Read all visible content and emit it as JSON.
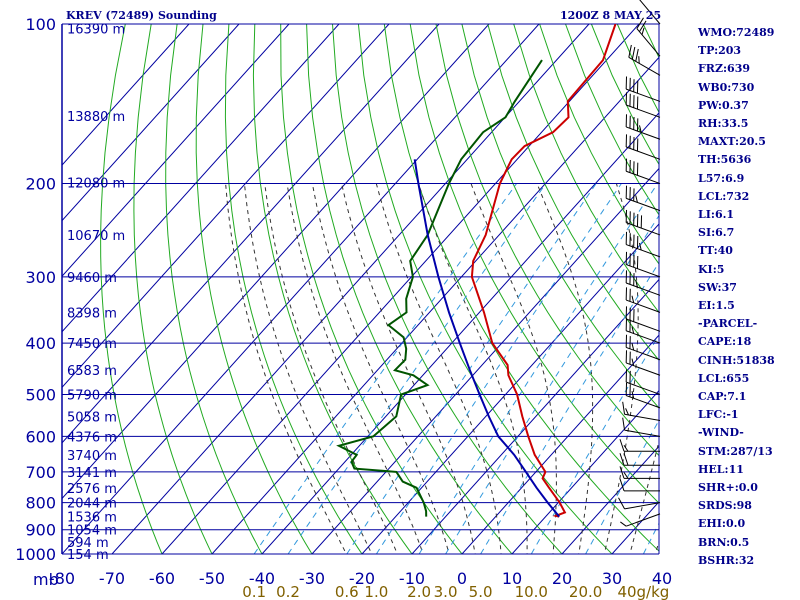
{
  "header": {
    "station": "KREV (72489) Sounding",
    "time": "1200Z  8 MAY 25"
  },
  "indices": [
    "WMO:72489",
    "TP:203",
    "FRZ:639",
    "WB0:730",
    "PW:0.37",
    "RH:33.5",
    "MAXT:20.5",
    "TH:5636",
    "L57:6.9",
    "LCL:732",
    "LI:6.1",
    "SI:6.7",
    "TT:40",
    "KI:5",
    "SW:37",
    "EI:1.5",
    "-PARCEL-",
    "CAPE:18",
    "CINH:51838",
    "LCL:655",
    "CAP:7.1",
    "LFC:-1",
    "-WIND-",
    "STM:287/13",
    "HEL:11",
    "SHR+:0.0",
    "SRDS:98",
    "EHI:0.0",
    "BRN:0.5",
    "BSHR:32"
  ],
  "colors": {
    "isobar": "#0000a0",
    "isotherm": "#0000a0",
    "dry_adiabat": "#22aa22",
    "moist_adiabat": "#333333",
    "mixing_ratio": "#3399dd",
    "temperature": "#cc0000",
    "dewpoint": "#005500",
    "parcel": "#0000aa",
    "axis_text": "#0000a0",
    "mixing_text": "#806000"
  },
  "chart_data": {
    "type": "line",
    "skew_t": true,
    "y_scale": "log",
    "pressure_levels_mb": [
      100,
      200,
      300,
      400,
      500,
      600,
      700,
      800,
      900,
      1000
    ],
    "pressure_axis_label": "mb",
    "temperature_ticks_c": [
      -80,
      -70,
      -60,
      -50,
      -40,
      -30,
      -20,
      -10,
      0,
      10,
      20,
      30,
      40
    ],
    "temperature_tick_labels": [
      "-80",
      "-70",
      "-60",
      "-50",
      "-40",
      "-30",
      "-20",
      "-10",
      "0",
      "10",
      "20",
      "30",
      "40"
    ],
    "mixing_ratio_labels": [
      "0.1",
      "0.2",
      "0.6",
      "1.0",
      "2.0",
      "3.0",
      "5.0",
      "10.0",
      "20.0",
      "40g/kg"
    ],
    "mixing_ratio_values": [
      0.1,
      0.2,
      0.6,
      1.0,
      2.0,
      3.0,
      5.0,
      10.0,
      20.0,
      40.0
    ],
    "height_labels": [
      {
        "p": 102,
        "label": "16390 m"
      },
      {
        "p": 149,
        "label": "13880 m"
      },
      {
        "p": 199,
        "label": "12080 m"
      },
      {
        "p": 250,
        "label": "10670 m"
      },
      {
        "p": 300,
        "label": "9460 m"
      },
      {
        "p": 350,
        "label": "8398 m"
      },
      {
        "p": 400,
        "label": "7450 m"
      },
      {
        "p": 450,
        "label": "6583 m"
      },
      {
        "p": 500,
        "label": "5790 m"
      },
      {
        "p": 550,
        "label": "5058 m"
      },
      {
        "p": 600,
        "label": "4376 m"
      },
      {
        "p": 650,
        "label": "3740 m"
      },
      {
        "p": 700,
        "label": "3141 m"
      },
      {
        "p": 750,
        "label": "2576 m"
      },
      {
        "p": 800,
        "label": "2044 m"
      },
      {
        "p": 850,
        "label": "1536 m"
      },
      {
        "p": 900,
        "label": "1054 m"
      },
      {
        "p": 950,
        "label": "594 m"
      },
      {
        "p": 1000,
        "label": "154 m"
      }
    ],
    "series": [
      {
        "key": "temperature",
        "points": [
          [
            100,
            -64.7
          ],
          [
            117,
            -60.7
          ],
          [
            140,
            -60.3
          ],
          [
            150,
            -57.3
          ],
          [
            160,
            -57.7
          ],
          [
            170,
            -60.9
          ],
          [
            180,
            -61.1
          ],
          [
            200,
            -59.1
          ],
          [
            250,
            -52.7
          ],
          [
            280,
            -50.5
          ],
          [
            300,
            -47.9
          ],
          [
            350,
            -39.1
          ],
          [
            400,
            -31.9
          ],
          [
            440,
            -24.9
          ],
          [
            460,
            -22.9
          ],
          [
            500,
            -17.7
          ],
          [
            550,
            -12.7
          ],
          [
            600,
            -7.9
          ],
          [
            650,
            -3.3
          ],
          [
            700,
            1.9
          ],
          [
            720,
            2.5
          ],
          [
            750,
            5.5
          ],
          [
            800,
            10.3
          ],
          [
            835,
            13.1
          ],
          [
            847,
            11.9
          ],
          [
            850,
            12.7
          ]
        ]
      },
      {
        "key": "dewpoint",
        "points": [
          [
            117,
            -72.9
          ],
          [
            140,
            -70.9
          ],
          [
            150,
            -69.9
          ],
          [
            160,
            -71.7
          ],
          [
            180,
            -71.2
          ],
          [
            200,
            -69.3
          ],
          [
            250,
            -64.3
          ],
          [
            280,
            -63.1
          ],
          [
            300,
            -59.7
          ],
          [
            330,
            -57.1
          ],
          [
            350,
            -54.6
          ],
          [
            370,
            -55.9
          ],
          [
            390,
            -50.7
          ],
          [
            410,
            -48.1
          ],
          [
            430,
            -46.3
          ],
          [
            450,
            -46.5
          ],
          [
            460,
            -41.9
          ],
          [
            480,
            -37.3
          ],
          [
            500,
            -40.9
          ],
          [
            550,
            -37.9
          ],
          [
            600,
            -38.9
          ],
          [
            625,
            -44.1
          ],
          [
            650,
            -38.9
          ],
          [
            670,
            -38.7
          ],
          [
            690,
            -36.9
          ],
          [
            700,
            -27.9
          ],
          [
            730,
            -24.9
          ],
          [
            750,
            -21.0
          ],
          [
            800,
            -16.9
          ],
          [
            830,
            -14.9
          ],
          [
            850,
            -13.9
          ]
        ]
      },
      {
        "key": "parcel",
        "points": [
          [
            180,
            -80.5
          ],
          [
            200,
            -75.4
          ],
          [
            250,
            -64.3
          ],
          [
            300,
            -54.6
          ],
          [
            350,
            -46.1
          ],
          [
            400,
            -38.4
          ],
          [
            450,
            -31.5
          ],
          [
            500,
            -25.2
          ],
          [
            550,
            -19.4
          ],
          [
            600,
            -13.9
          ],
          [
            650,
            -7.4
          ],
          [
            700,
            -2.0
          ],
          [
            750,
            3.0
          ],
          [
            800,
            7.9
          ],
          [
            850,
            12.7
          ]
        ]
      }
    ],
    "wind_barbs": [
      {
        "p": 100,
        "dir": 320,
        "spd": 15
      },
      {
        "p": 115,
        "dir": 320,
        "spd": 25
      },
      {
        "p": 125,
        "dir": 300,
        "spd": 35
      },
      {
        "p": 140,
        "dir": 290,
        "spd": 40
      },
      {
        "p": 150,
        "dir": 290,
        "spd": 40
      },
      {
        "p": 165,
        "dir": 290,
        "spd": 45
      },
      {
        "p": 180,
        "dir": 290,
        "spd": 40
      },
      {
        "p": 200,
        "dir": 290,
        "spd": 40
      },
      {
        "p": 225,
        "dir": 290,
        "spd": 35
      },
      {
        "p": 250,
        "dir": 290,
        "spd": 50
      },
      {
        "p": 275,
        "dir": 290,
        "spd": 45
      },
      {
        "p": 300,
        "dir": 290,
        "spd": 40
      },
      {
        "p": 325,
        "dir": 290,
        "spd": 35
      },
      {
        "p": 350,
        "dir": 290,
        "spd": 25
      },
      {
        "p": 380,
        "dir": 290,
        "spd": 30
      },
      {
        "p": 400,
        "dir": 290,
        "spd": 25
      },
      {
        "p": 430,
        "dir": 290,
        "spd": 25
      },
      {
        "p": 460,
        "dir": 290,
        "spd": 25
      },
      {
        "p": 500,
        "dir": 290,
        "spd": 20
      },
      {
        "p": 530,
        "dir": 290,
        "spd": 25
      },
      {
        "p": 560,
        "dir": 280,
        "spd": 15
      },
      {
        "p": 600,
        "dir": 280,
        "spd": 10
      },
      {
        "p": 640,
        "dir": 270,
        "spd": 15
      },
      {
        "p": 680,
        "dir": 270,
        "spd": 20
      },
      {
        "p": 720,
        "dir": 270,
        "spd": 15
      },
      {
        "p": 760,
        "dir": 270,
        "spd": 10
      },
      {
        "p": 800,
        "dir": 260,
        "spd": 10
      },
      {
        "p": 840,
        "dir": 250,
        "spd": 5
      }
    ]
  }
}
